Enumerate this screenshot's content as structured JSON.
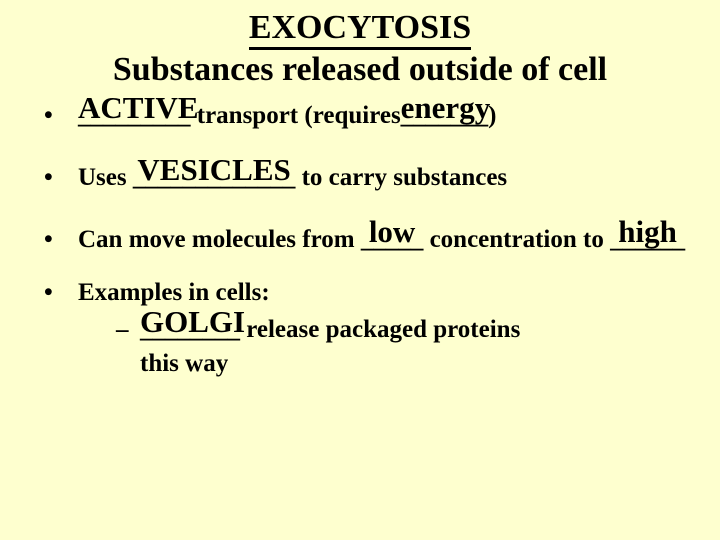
{
  "colors": {
    "background": "#feffcf",
    "text": "#000000",
    "underline": "#000000"
  },
  "typography": {
    "family": "Comic Sans MS",
    "title_fontsize": 34,
    "body_fontsize": 25,
    "answer_fontsize": 31,
    "weight": "bold"
  },
  "title": "EXOCYTOSIS",
  "subtitle": "Substances released outside of cell",
  "bullets": {
    "b1": {
      "blank1": "_________",
      "answer1": "ACTIVE",
      "mid": " transport (requires",
      "blank2": "_______",
      "answer2": "energy",
      "tail": ")"
    },
    "b2": {
      "pre": "Uses ",
      "blank": "_____________",
      "answer": "VESICLES",
      "post": " to carry substances"
    },
    "b3": {
      "pre": "Can move molecules from ",
      "blank1": "_____",
      "answer1": "low",
      "mid": " concentration to ",
      "blank2": "______",
      "answer2": "high"
    },
    "b4": {
      "line": "Examples in cells:",
      "sub": {
        "blank": "________",
        "answer": "GOLGI",
        "post": " release packaged proteins",
        "cont": "this way"
      }
    }
  }
}
